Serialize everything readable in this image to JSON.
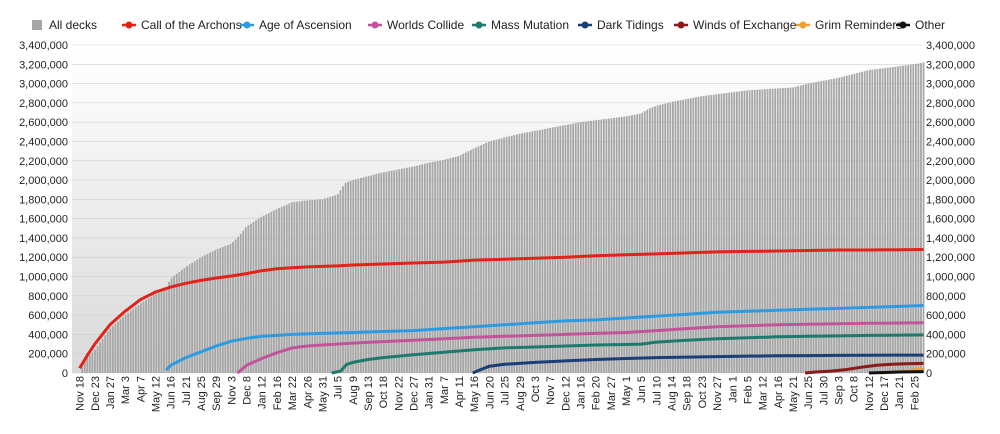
{
  "chart_data": {
    "type": "area",
    "legend_position": "top",
    "grid": true,
    "ylim": [
      0,
      3400000
    ],
    "y_ticks": [
      "0",
      "200,000",
      "400,000",
      "600,000",
      "800,000",
      "1,000,000",
      "1,200,000",
      "1,400,000",
      "1,600,000",
      "1,800,000",
      "2,000,000",
      "2,200,000",
      "2,400,000",
      "2,600,000",
      "2,800,000",
      "3,000,000",
      "3,200,000",
      "3,400,000"
    ],
    "x_ticks": [
      "Nov 18",
      "Dec 23",
      "Jan 27",
      "Mar 3",
      "Apr 7",
      "May 12",
      "Jun 16",
      "Jul 21",
      "Aug 25",
      "Sep 29",
      "Nov 3",
      "Dec 8",
      "Jan 12",
      "Feb 16",
      "Mar 22",
      "Apr 26",
      "May 31",
      "Jul 5",
      "Aug 9",
      "Sep 13",
      "Oct 18",
      "Nov 22",
      "Dec 27",
      "Jan 31",
      "Mar 7",
      "Apr 11",
      "May 16",
      "Jun 20",
      "Jul 25",
      "Aug 29",
      "Oct 3",
      "Nov 7",
      "Dec 12",
      "Jan 16",
      "Feb 20",
      "Mar 27",
      "May 1",
      "Jun 5",
      "Jul 10",
      "Aug 14",
      "Sep 18",
      "Oct 23",
      "Nov 27",
      "Jan 1",
      "Feb 5",
      "Mar 12",
      "Apr 16",
      "May 21",
      "Jun 25",
      "Jul 30",
      "Sep 3",
      "Oct 8",
      "Nov 12",
      "Dec 17",
      "Jan 21",
      "Feb 25"
    ],
    "series": [
      {
        "name": "All decks",
        "kind": "bars",
        "color": "#a6a6a6",
        "points": [
          [
            0,
            0
          ],
          [
            0.3,
            120000
          ],
          [
            1,
            240000
          ],
          [
            2,
            460000
          ],
          [
            3,
            600000
          ],
          [
            4,
            720000
          ],
          [
            5,
            820000
          ],
          [
            5.7,
            880000
          ],
          [
            6,
            980000
          ],
          [
            7,
            1100000
          ],
          [
            8,
            1200000
          ],
          [
            9,
            1280000
          ],
          [
            10,
            1340000
          ],
          [
            10.5,
            1420000
          ],
          [
            11,
            1520000
          ],
          [
            12,
            1620000
          ],
          [
            13,
            1700000
          ],
          [
            14,
            1770000
          ],
          [
            15,
            1790000
          ],
          [
            16,
            1800000
          ],
          [
            17,
            1850000
          ],
          [
            17.5,
            1970000
          ],
          [
            18,
            2000000
          ],
          [
            19,
            2040000
          ],
          [
            20,
            2080000
          ],
          [
            21,
            2110000
          ],
          [
            22,
            2140000
          ],
          [
            23,
            2180000
          ],
          [
            24,
            2210000
          ],
          [
            25,
            2250000
          ],
          [
            26,
            2330000
          ],
          [
            27,
            2400000
          ],
          [
            28,
            2440000
          ],
          [
            29,
            2480000
          ],
          [
            30,
            2510000
          ],
          [
            31,
            2540000
          ],
          [
            32,
            2570000
          ],
          [
            33,
            2600000
          ],
          [
            34,
            2620000
          ],
          [
            35,
            2640000
          ],
          [
            36,
            2660000
          ],
          [
            37,
            2690000
          ],
          [
            37.5,
            2740000
          ],
          [
            38,
            2770000
          ],
          [
            39,
            2810000
          ],
          [
            40,
            2840000
          ],
          [
            41,
            2870000
          ],
          [
            42,
            2890000
          ],
          [
            43,
            2910000
          ],
          [
            44,
            2930000
          ],
          [
            45,
            2940000
          ],
          [
            46,
            2950000
          ],
          [
            47,
            2960000
          ],
          [
            48,
            3000000
          ],
          [
            49,
            3030000
          ],
          [
            50,
            3060000
          ],
          [
            51,
            3100000
          ],
          [
            52,
            3140000
          ],
          [
            53,
            3160000
          ],
          [
            54,
            3180000
          ],
          [
            55,
            3200000
          ],
          [
            55.6,
            3220000
          ]
        ]
      },
      {
        "name": "Call of the Archons",
        "kind": "line",
        "color": "#e2231a",
        "points": [
          [
            0,
            50000
          ],
          [
            0.5,
            180000
          ],
          [
            1,
            300000
          ],
          [
            2,
            500000
          ],
          [
            3,
            640000
          ],
          [
            4,
            760000
          ],
          [
            5,
            840000
          ],
          [
            6,
            890000
          ],
          [
            7,
            930000
          ],
          [
            8,
            960000
          ],
          [
            9,
            985000
          ],
          [
            10,
            1005000
          ],
          [
            11,
            1030000
          ],
          [
            12,
            1060000
          ],
          [
            13,
            1080000
          ],
          [
            14,
            1090000
          ],
          [
            15,
            1100000
          ],
          [
            16,
            1105000
          ],
          [
            17,
            1110000
          ],
          [
            18,
            1120000
          ],
          [
            20,
            1130000
          ],
          [
            22,
            1140000
          ],
          [
            24,
            1150000
          ],
          [
            26,
            1170000
          ],
          [
            28,
            1180000
          ],
          [
            30,
            1190000
          ],
          [
            32,
            1200000
          ],
          [
            34,
            1215000
          ],
          [
            36,
            1225000
          ],
          [
            38,
            1235000
          ],
          [
            40,
            1245000
          ],
          [
            42,
            1255000
          ],
          [
            44,
            1260000
          ],
          [
            46,
            1265000
          ],
          [
            48,
            1270000
          ],
          [
            50,
            1275000
          ],
          [
            52,
            1275000
          ],
          [
            55.6,
            1280000
          ]
        ]
      },
      {
        "name": "Age of Ascension",
        "kind": "line",
        "color": "#2d9be0",
        "points": [
          [
            5.7,
            30000
          ],
          [
            6,
            80000
          ],
          [
            7,
            160000
          ],
          [
            8,
            220000
          ],
          [
            9,
            280000
          ],
          [
            10,
            330000
          ],
          [
            11,
            360000
          ],
          [
            12,
            380000
          ],
          [
            13,
            390000
          ],
          [
            14,
            400000
          ],
          [
            16,
            410000
          ],
          [
            18,
            420000
          ],
          [
            20,
            430000
          ],
          [
            22,
            440000
          ],
          [
            24,
            460000
          ],
          [
            26,
            480000
          ],
          [
            28,
            500000
          ],
          [
            30,
            520000
          ],
          [
            32,
            540000
          ],
          [
            34,
            550000
          ],
          [
            36,
            570000
          ],
          [
            38,
            590000
          ],
          [
            40,
            610000
          ],
          [
            42,
            630000
          ],
          [
            44,
            640000
          ],
          [
            46,
            650000
          ],
          [
            48,
            660000
          ],
          [
            50,
            670000
          ],
          [
            52,
            680000
          ],
          [
            55.6,
            700000
          ]
        ]
      },
      {
        "name": "Worlds Collide",
        "kind": "line",
        "color": "#c2549c",
        "points": [
          [
            10.4,
            0
          ],
          [
            11,
            80000
          ],
          [
            12,
            150000
          ],
          [
            13,
            210000
          ],
          [
            14,
            260000
          ],
          [
            15,
            280000
          ],
          [
            16,
            290000
          ],
          [
            18,
            310000
          ],
          [
            20,
            325000
          ],
          [
            22,
            340000
          ],
          [
            24,
            355000
          ],
          [
            26,
            370000
          ],
          [
            28,
            380000
          ],
          [
            30,
            390000
          ],
          [
            32,
            400000
          ],
          [
            34,
            410000
          ],
          [
            36,
            420000
          ],
          [
            38,
            440000
          ],
          [
            40,
            460000
          ],
          [
            42,
            480000
          ],
          [
            44,
            490000
          ],
          [
            46,
            500000
          ],
          [
            48,
            505000
          ],
          [
            50,
            510000
          ],
          [
            52,
            515000
          ],
          [
            55.6,
            520000
          ]
        ]
      },
      {
        "name": "Mass Mutation",
        "kind": "line",
        "color": "#1f7a6e",
        "points": [
          [
            16.6,
            0
          ],
          [
            17.2,
            20000
          ],
          [
            17.6,
            90000
          ],
          [
            18,
            110000
          ],
          [
            19,
            140000
          ],
          [
            20,
            160000
          ],
          [
            22,
            190000
          ],
          [
            24,
            215000
          ],
          [
            26,
            240000
          ],
          [
            28,
            260000
          ],
          [
            30,
            270000
          ],
          [
            32,
            280000
          ],
          [
            34,
            290000
          ],
          [
            36,
            295000
          ],
          [
            37,
            300000
          ],
          [
            38,
            320000
          ],
          [
            40,
            340000
          ],
          [
            42,
            355000
          ],
          [
            44,
            365000
          ],
          [
            46,
            375000
          ],
          [
            48,
            380000
          ],
          [
            50,
            385000
          ],
          [
            52,
            390000
          ],
          [
            55.6,
            395000
          ]
        ]
      },
      {
        "name": "Dark Tidings",
        "kind": "line",
        "color": "#1a3f78",
        "points": [
          [
            25.9,
            0
          ],
          [
            26.5,
            40000
          ],
          [
            27,
            70000
          ],
          [
            28,
            90000
          ],
          [
            30,
            110000
          ],
          [
            32,
            125000
          ],
          [
            34,
            140000
          ],
          [
            36,
            150000
          ],
          [
            38,
            160000
          ],
          [
            40,
            165000
          ],
          [
            42,
            170000
          ],
          [
            44,
            175000
          ],
          [
            46,
            178000
          ],
          [
            48,
            180000
          ],
          [
            50,
            182000
          ],
          [
            52,
            184000
          ],
          [
            55.6,
            186000
          ]
        ]
      },
      {
        "name": "Winds of Exchange",
        "kind": "line",
        "color": "#8b1a1a",
        "points": [
          [
            47.8,
            0
          ],
          [
            48.5,
            10000
          ],
          [
            49.5,
            20000
          ],
          [
            50.5,
            35000
          ],
          [
            51.5,
            60000
          ],
          [
            52.5,
            80000
          ],
          [
            53.5,
            90000
          ],
          [
            54.5,
            95000
          ],
          [
            55.6,
            100000
          ]
        ]
      },
      {
        "name": "Grim Reminders",
        "kind": "line",
        "color": "#f0a030",
        "points": [
          [
            52.8,
            0
          ],
          [
            53.5,
            8000
          ],
          [
            54.5,
            20000
          ],
          [
            55.6,
            40000
          ]
        ]
      },
      {
        "name": "Other",
        "kind": "line",
        "color": "#111111",
        "points": [
          [
            52,
            0
          ],
          [
            53,
            5000
          ],
          [
            54,
            10000
          ],
          [
            55.6,
            15000
          ]
        ]
      }
    ]
  }
}
